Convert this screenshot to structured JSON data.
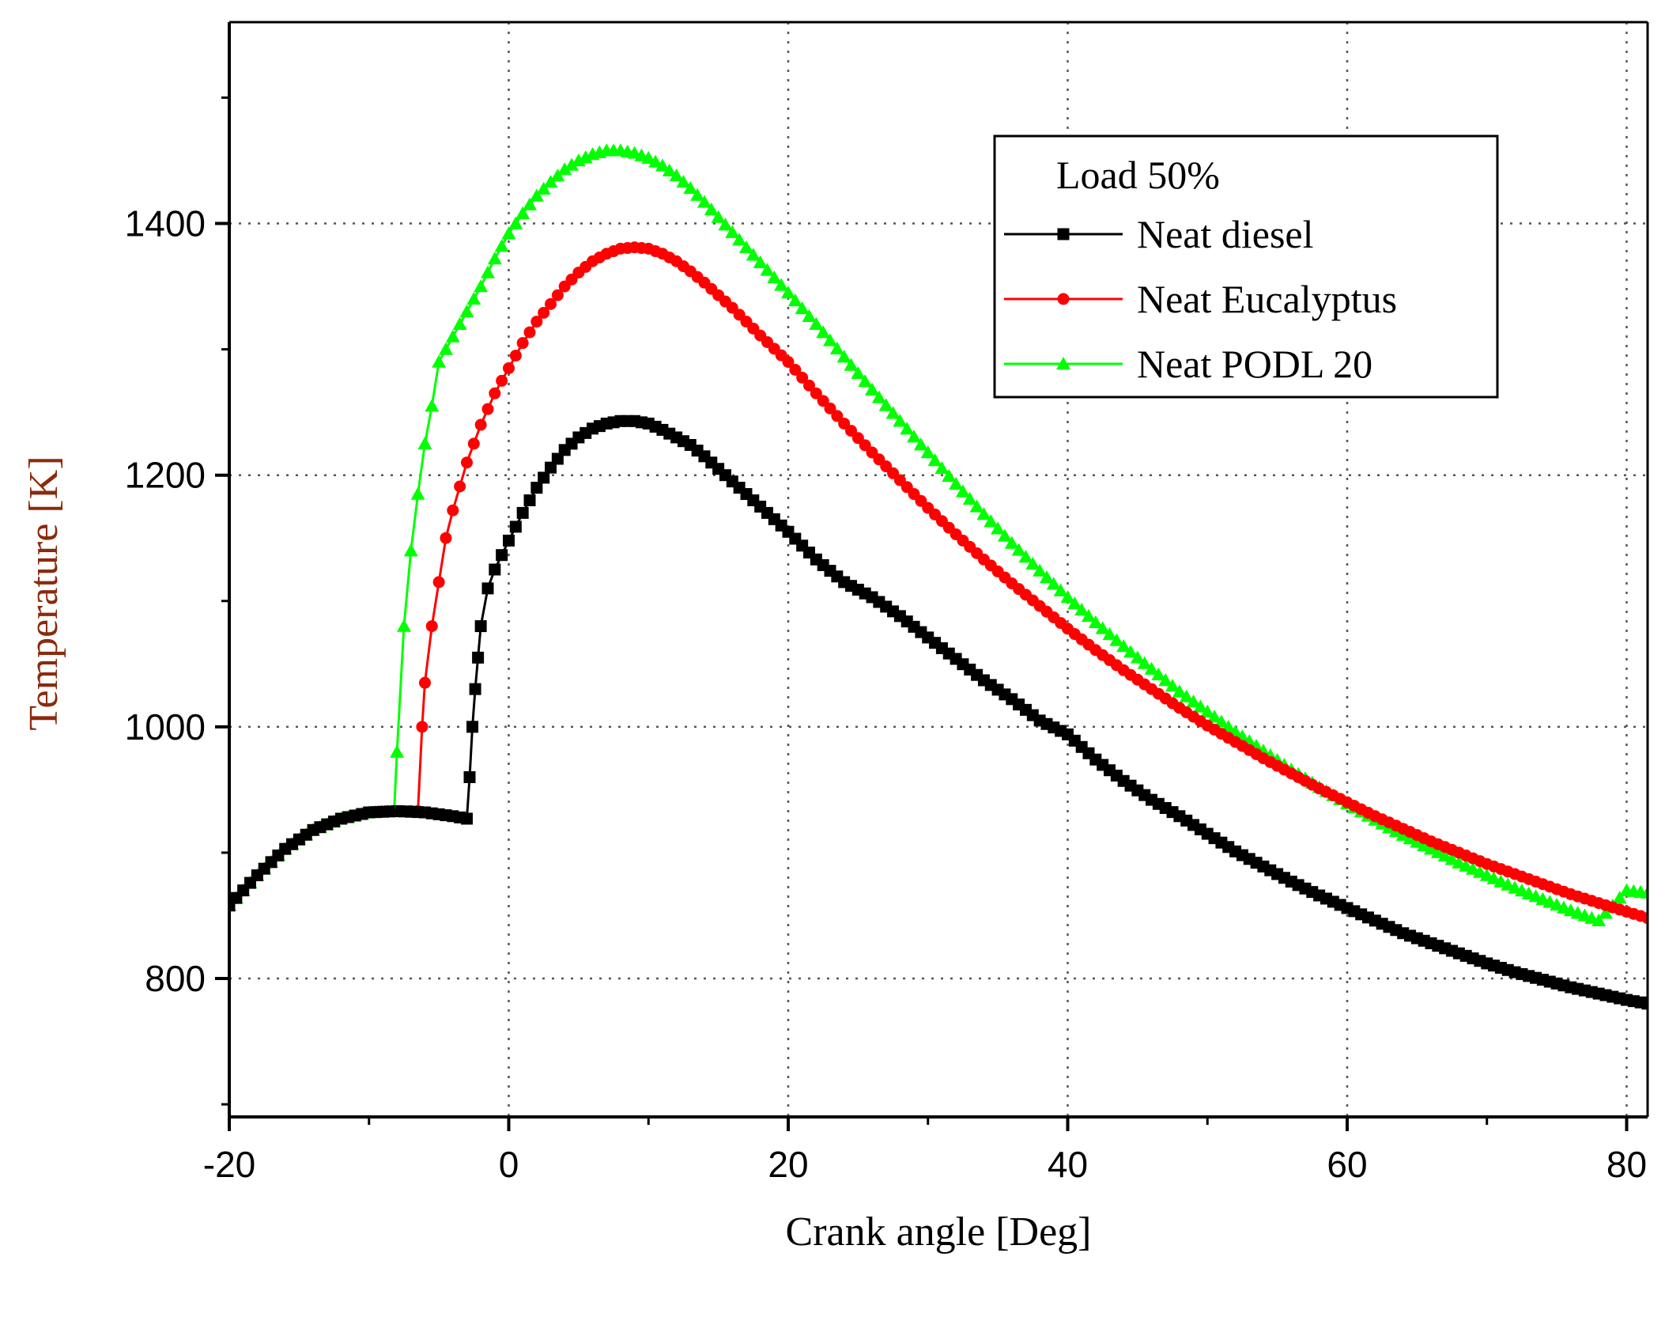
{
  "chart_data": {
    "type": "line",
    "title": "",
    "xlabel": "Crank angle [Deg]",
    "ylabel": "Temperature [K]",
    "xlim": [
      -20,
      81.5
    ],
    "ylim": [
      690,
      1560
    ],
    "xticks": [
      -20,
      0,
      20,
      40,
      60,
      80
    ],
    "yticks": [
      800,
      1000,
      1200,
      1400
    ],
    "grid": true,
    "legend": {
      "title": "Load 50%",
      "position": "top-right"
    },
    "series": [
      {
        "name": "Neat diesel",
        "color": "#000000",
        "marker": "square",
        "x": [
          -20,
          -18,
          -16,
          -14,
          -12,
          -10,
          -8,
          -6,
          -4,
          -3.5,
          -3,
          -2.8,
          -2.6,
          -2.4,
          -2.2,
          -2,
          -1.5,
          -1,
          0,
          1,
          2,
          3,
          4,
          5,
          6,
          7,
          8,
          9,
          10,
          11,
          12,
          13,
          14,
          15,
          16,
          18,
          20,
          22,
          24,
          26,
          28,
          30,
          32,
          34,
          36,
          38,
          40,
          42,
          44,
          46,
          48,
          50,
          52,
          54,
          56,
          58,
          60,
          62,
          64,
          66,
          68,
          70,
          72,
          74,
          76,
          78,
          80,
          81.5
        ],
        "y": [
          858,
          882,
          903,
          918,
          927,
          932,
          933,
          932,
          929,
          928,
          927,
          960,
          1000,
          1030,
          1055,
          1080,
          1110,
          1125,
          1148,
          1170,
          1190,
          1206,
          1220,
          1230,
          1237,
          1241,
          1243,
          1243,
          1241,
          1236,
          1230,
          1224,
          1215,
          1205,
          1195,
          1175,
          1155,
          1133,
          1115,
          1103,
          1088,
          1071,
          1054,
          1037,
          1022,
          1005,
          994,
          974,
          957,
          942,
          929,
          915,
          901,
          889,
          877,
          866,
          856,
          846,
          836,
          828,
          820,
          812,
          805,
          799,
          793,
          788,
          783,
          780
        ]
      },
      {
        "name": "Neat Eucalyptus",
        "color": "#ff0000",
        "marker": "circle",
        "x": [
          -20,
          -18,
          -16,
          -14,
          -12,
          -10,
          -8,
          -6.5,
          -6.2,
          -6,
          -5.5,
          -5,
          -4.5,
          -4,
          -3,
          -2,
          -1,
          0,
          1,
          2,
          3,
          4,
          5,
          6,
          7,
          8,
          9,
          10,
          11,
          12,
          13,
          14,
          15,
          16,
          18,
          20,
          22,
          24,
          26,
          28,
          30,
          32,
          34,
          36,
          38,
          40,
          42,
          44,
          46,
          48,
          50,
          52,
          54,
          56,
          58,
          60,
          62,
          64,
          66,
          68,
          70,
          72,
          74,
          76,
          78,
          80,
          81.5
        ],
        "y": [
          858,
          882,
          903,
          918,
          927,
          932,
          933,
          933,
          1000,
          1035,
          1080,
          1115,
          1150,
          1172,
          1210,
          1240,
          1265,
          1285,
          1305,
          1322,
          1336,
          1350,
          1361,
          1370,
          1376,
          1380,
          1381,
          1380,
          1376,
          1370,
          1362,
          1353,
          1343,
          1333,
          1311,
          1290,
          1265,
          1241,
          1218,
          1196,
          1174,
          1153,
          1133,
          1114,
          1096,
          1078,
          1061,
          1045,
          1030,
          1015,
          1001,
          988,
          975,
          963,
          951,
          940,
          929,
          919,
          909,
          900,
          891,
          883,
          875,
          867,
          860,
          853,
          848
        ]
      },
      {
        "name": "Neat PODL 20",
        "color": "#00ff00",
        "marker": "triangle",
        "x": [
          -20,
          -18,
          -16,
          -14,
          -12,
          -10,
          -8.2,
          -8,
          -7.5,
          -7,
          -6.5,
          -6,
          -5.5,
          -5,
          -4,
          -3,
          -2,
          -1,
          0,
          1,
          2,
          3,
          4,
          5,
          6,
          7,
          8,
          9,
          10,
          11,
          12,
          13,
          14,
          15,
          16,
          18,
          20,
          22,
          24,
          26,
          28,
          30,
          32,
          34,
          36,
          38,
          40,
          42,
          44,
          46,
          48,
          50,
          52,
          54,
          56,
          58,
          60,
          62,
          64,
          66,
          68,
          70,
          72,
          74,
          76,
          78,
          80,
          81.5
        ],
        "y": [
          858,
          882,
          903,
          918,
          927,
          932,
          933,
          980,
          1080,
          1140,
          1185,
          1225,
          1255,
          1290,
          1310,
          1330,
          1350,
          1372,
          1392,
          1408,
          1422,
          1433,
          1443,
          1450,
          1455,
          1458,
          1458,
          1456,
          1452,
          1446,
          1438,
          1428,
          1417,
          1405,
          1393,
          1369,
          1345,
          1320,
          1294,
          1268,
          1243,
          1218,
          1193,
          1169,
          1146,
          1124,
          1103,
          1083,
          1064,
          1046,
          1028,
          1012,
          996,
          981,
          966,
          952,
          939,
          926,
          914,
          903,
          892,
          882,
          872,
          863,
          854,
          846,
          870,
          868
        ]
      }
    ]
  }
}
